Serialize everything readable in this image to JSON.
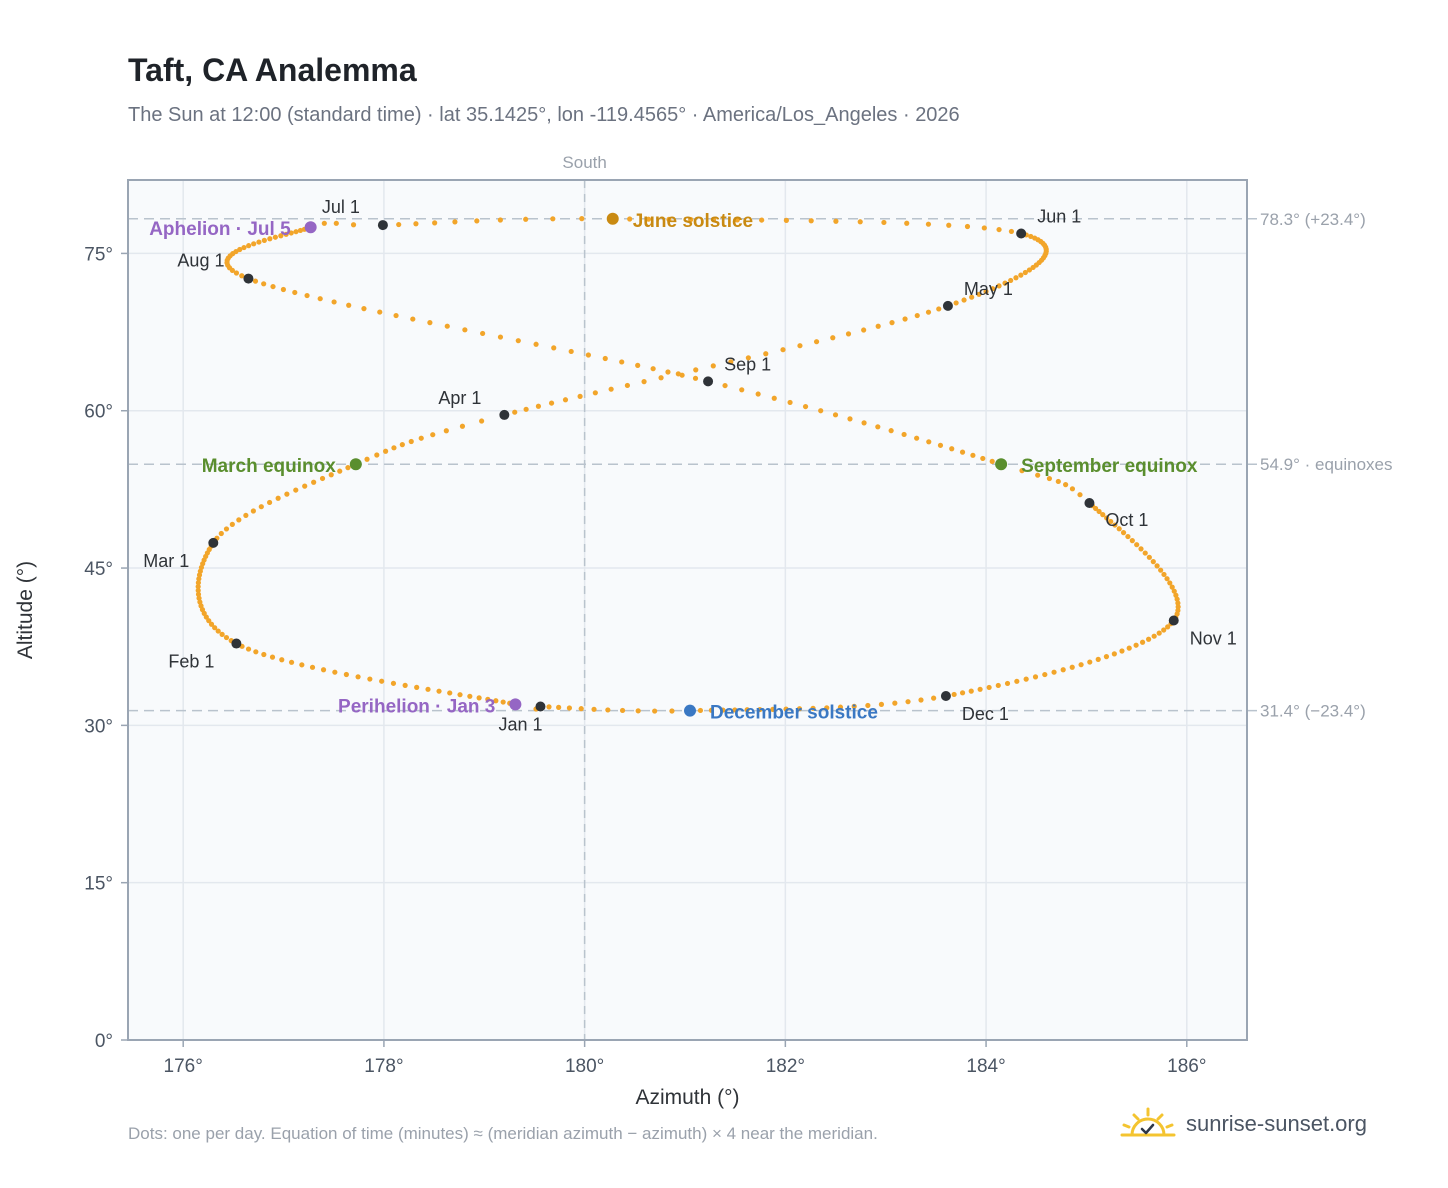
{
  "title": "Taft, CA Analemma",
  "subtitle": "The Sun at 12:00 (standard time) · lat 35.1425°, lon -119.4565° · America/Los_Angeles · 2026",
  "footnote": "Dots: one per day. Equation of time (minutes) ≈ (meridian azimuth − azimuth) × 4 near the meridian.",
  "brand": {
    "name": "sunrise-sunset.org",
    "icon": "sun-check-icon"
  },
  "colors": {
    "track": "#f2a52a",
    "month_marker": "#2f3338",
    "solstice_june": "#c98a12",
    "solstice_december": "#3a78c3",
    "equinox": "#5a8e2e",
    "apsis": "#9566c4",
    "plot_bg": "#f8fafc",
    "grid": "#e3e8ee",
    "axis_frame": "#9aa5b3",
    "reference_line": "#b9c3cd"
  },
  "chart_data": {
    "type": "scatter",
    "xlabel": "Azimuth (°)",
    "ylabel": "Altitude (°)",
    "xlim": [
      175.45,
      186.6
    ],
    "ylim": [
      0,
      82
    ],
    "x_ticks": [
      176,
      178,
      180,
      182,
      184,
      186
    ],
    "x_tick_labels": [
      "176°",
      "178°",
      "180°",
      "182°",
      "184°",
      "186°"
    ],
    "y_ticks": [
      0,
      15,
      30,
      45,
      60,
      75
    ],
    "y_tick_labels": [
      "0°",
      "15°",
      "30°",
      "45°",
      "60°",
      "75°"
    ],
    "grid": true,
    "meridian": {
      "azimuth": 180,
      "label": "South"
    },
    "reference_lines": [
      {
        "altitude": 78.3,
        "label": "78.3° (+23.4°)"
      },
      {
        "altitude": 54.9,
        "label": "54.9° · equinoxes"
      },
      {
        "altitude": 31.4,
        "label": "31.4° (−23.4°)"
      }
    ],
    "daily_points": {
      "count": 365,
      "description": "one per day"
    },
    "month_markers": [
      {
        "label": "Jan 1",
        "azimuth": 179.56,
        "altitude": 31.8
      },
      {
        "label": "Feb 1",
        "azimuth": 176.53,
        "altitude": 37.8
      },
      {
        "label": "Mar 1",
        "azimuth": 176.3,
        "altitude": 47.4
      },
      {
        "label": "Apr 1",
        "azimuth": 179.2,
        "altitude": 59.6
      },
      {
        "label": "May 1",
        "azimuth": 183.62,
        "altitude": 70.0
      },
      {
        "label": "Jun 1",
        "azimuth": 184.35,
        "altitude": 76.9
      },
      {
        "label": "Jul 1",
        "azimuth": 177.99,
        "altitude": 77.7
      },
      {
        "label": "Aug 1",
        "azimuth": 176.65,
        "altitude": 72.6
      },
      {
        "label": "Sep 1",
        "azimuth": 181.23,
        "altitude": 62.8
      },
      {
        "label": "Oct 1",
        "azimuth": 185.03,
        "altitude": 51.2
      },
      {
        "label": "Nov 1",
        "azimuth": 185.87,
        "altitude": 40.0
      },
      {
        "label": "Dec 1",
        "azimuth": 183.6,
        "altitude": 32.8
      }
    ],
    "events": [
      {
        "label": "June solstice",
        "kind": "solstice_june",
        "azimuth": 180.28,
        "altitude": 78.3
      },
      {
        "label": "December solstice",
        "kind": "solstice_december",
        "azimuth": 181.05,
        "altitude": 31.4
      },
      {
        "label": "March equinox",
        "kind": "equinox",
        "azimuth": 177.72,
        "altitude": 54.9
      },
      {
        "label": "September equinox",
        "kind": "equinox",
        "azimuth": 184.15,
        "altitude": 54.9
      },
      {
        "label": "Perihelion · Jan 3",
        "kind": "apsis",
        "azimuth": 179.31,
        "altitude": 32.0
      },
      {
        "label": "Aphelion · Jul 5",
        "kind": "apsis",
        "azimuth": 177.27,
        "altitude": 77.5
      }
    ]
  }
}
